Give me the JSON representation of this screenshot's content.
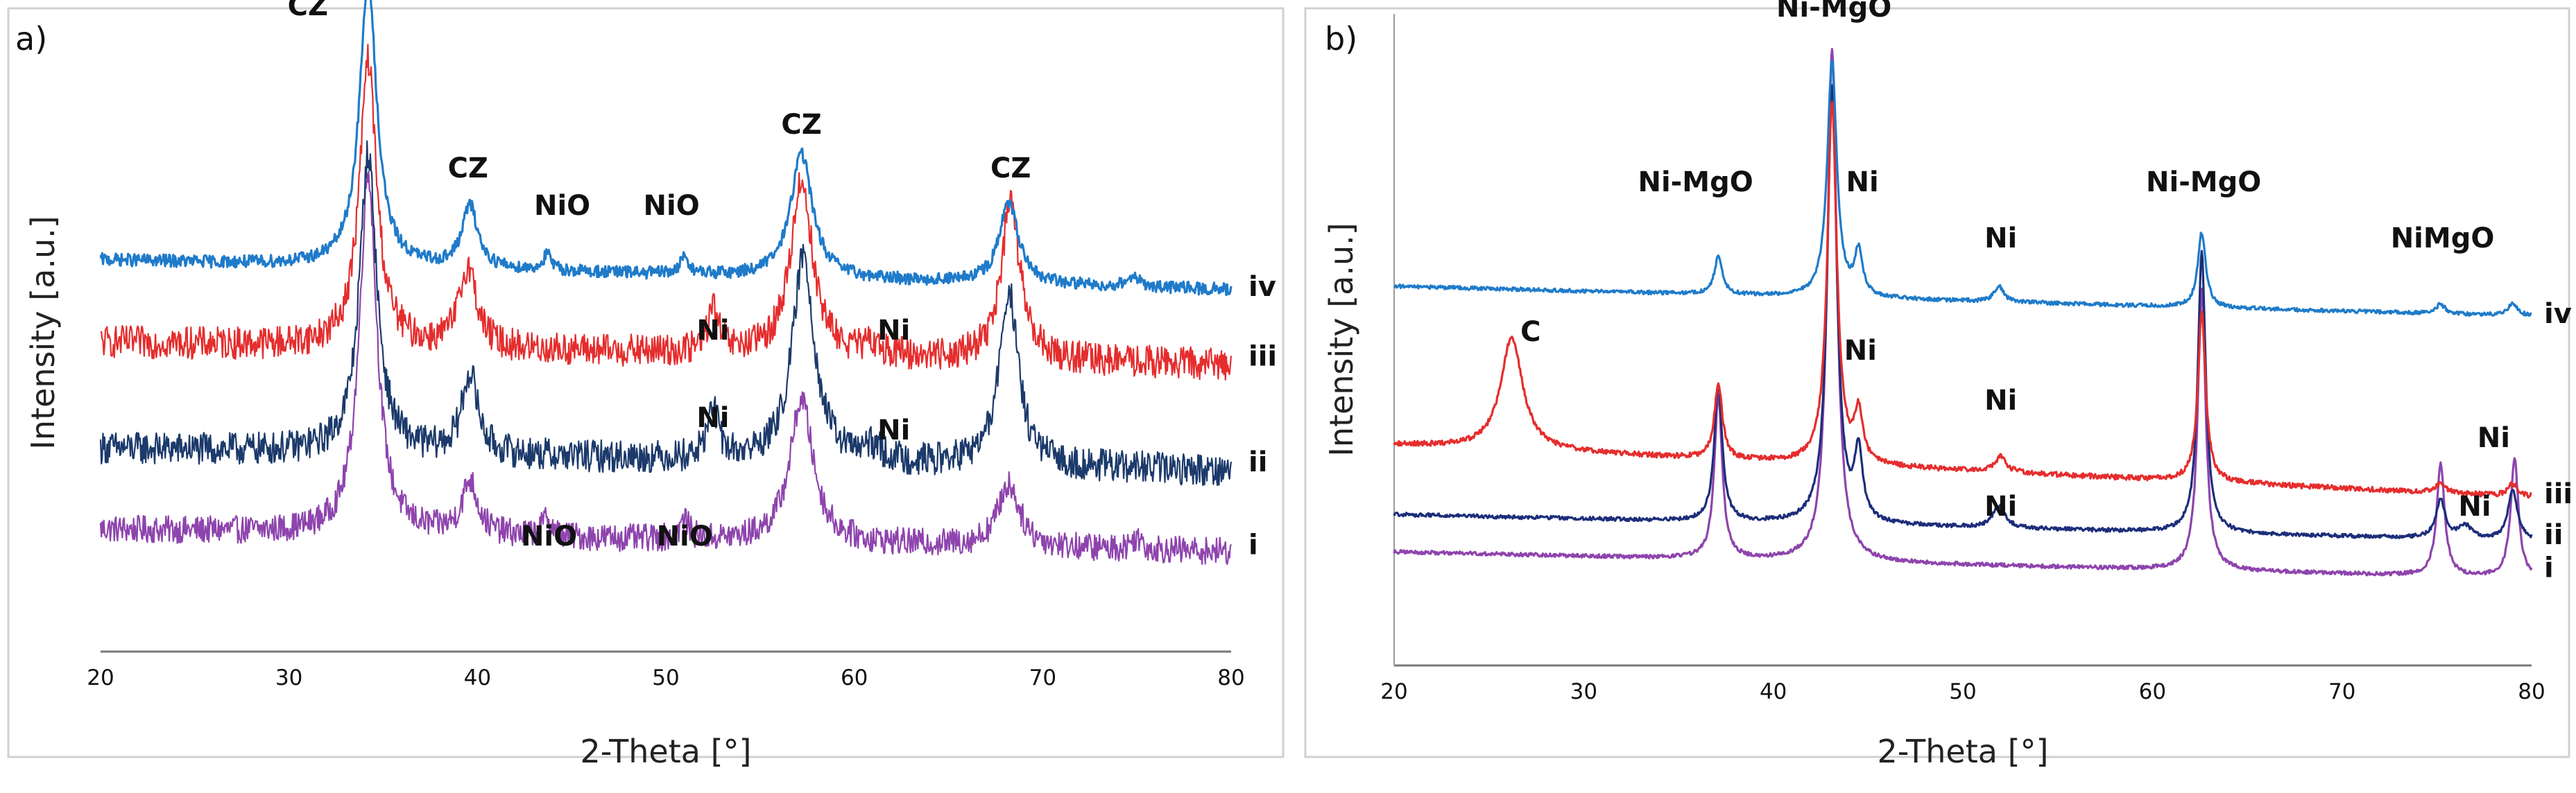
{
  "chart_data": [
    {
      "panel_label": "a)",
      "type": "line",
      "title": "",
      "xlabel": "2-Theta [°]",
      "ylabel": "Intensity [a.u.]",
      "xlim": [
        20,
        80
      ],
      "xticks": [
        "20",
        "30",
        "40",
        "50",
        "60",
        "70",
        "80"
      ],
      "grid": false,
      "series": [
        {
          "name": "i",
          "color": "#8e44ad",
          "baseline": 0.16,
          "noise": 0.022,
          "drift": 0.06,
          "peaks": [
            [
              34.2,
              0.58,
              0.55
            ],
            [
              39.6,
              0.085,
              0.5
            ],
            [
              43.7,
              0.03,
              0.3
            ],
            [
              51.0,
              0.03,
              0.3
            ],
            [
              57.2,
              0.23,
              0.75
            ],
            [
              68.2,
              0.1,
              0.7
            ],
            [
              75,
              0.02,
              0.3
            ]
          ]
        },
        {
          "name": "ii",
          "color": "#1c3a6b",
          "baseline": 0.29,
          "noise": 0.026,
          "drift": 0.06,
          "peaks": [
            [
              34.2,
              0.48,
              0.55
            ],
            [
              39.6,
              0.13,
              0.5
            ],
            [
              52.5,
              0.08,
              0.35
            ],
            [
              57.3,
              0.33,
              0.7
            ],
            [
              61,
              0.02,
              0.5
            ],
            [
              68.2,
              0.28,
              0.6
            ]
          ]
        },
        {
          "name": "iii",
          "color": "#e52d2d",
          "baseline": 0.46,
          "noise": 0.026,
          "drift": 0.06,
          "peaks": [
            [
              34.2,
              0.46,
              0.55
            ],
            [
              39.5,
              0.13,
              0.55
            ],
            [
              52.5,
              0.07,
              0.35
            ],
            [
              57.2,
              0.28,
              0.7
            ],
            [
              61,
              0.015,
              0.5
            ],
            [
              68.3,
              0.25,
              0.6
            ]
          ]
        },
        {
          "name": "iv",
          "color": "#1f7bc9",
          "baseline": 0.58,
          "noise": 0.01,
          "drift": 0.08,
          "peaks": [
            [
              34.2,
              0.46,
              0.55
            ],
            [
              39.6,
              0.1,
              0.5
            ],
            [
              43.7,
              0.025,
              0.25
            ],
            [
              51.0,
              0.03,
              0.25
            ],
            [
              57.2,
              0.2,
              0.7
            ],
            [
              68.2,
              0.13,
              0.6
            ],
            [
              74.8,
              0.02,
              0.3
            ]
          ]
        }
      ],
      "annotations": [
        {
          "text": "CZ",
          "x": 31.0,
          "y": 1.02
        },
        {
          "text": "CZ",
          "x": 39.5,
          "y": 0.76
        },
        {
          "text": "NiO",
          "x": 44.5,
          "y": 0.7
        },
        {
          "text": "NiO",
          "x": 50.3,
          "y": 0.7
        },
        {
          "text": "CZ",
          "x": 57.2,
          "y": 0.83
        },
        {
          "text": "CZ",
          "x": 68.3,
          "y": 0.76
        },
        {
          "text": "Ni",
          "x": 52.5,
          "y": 0.5
        },
        {
          "text": "Ni",
          "x": 62.1,
          "y": 0.5
        },
        {
          "text": "Ni",
          "x": 52.5,
          "y": 0.36
        },
        {
          "text": "Ni",
          "x": 62.1,
          "y": 0.34
        },
        {
          "text": "NiO",
          "x": 43.8,
          "y": 0.17
        },
        {
          "text": "NiO",
          "x": 51.0,
          "y": 0.17
        }
      ]
    },
    {
      "panel_label": "b)",
      "type": "line",
      "title": "",
      "xlabel": "2-Theta [°]",
      "ylabel": "Intensity [a.u.]",
      "xlim": [
        20,
        80
      ],
      "xticks": [
        "20",
        "30",
        "40",
        "50",
        "60",
        "70",
        "80"
      ],
      "grid": false,
      "series": [
        {
          "name": "i",
          "color": "#8e44ad",
          "baseline": 0.14,
          "noise": 0.003,
          "drift": 0.07,
          "peaks": [
            [
              37.1,
              0.26,
              0.25
            ],
            [
              43.1,
              0.82,
              0.3
            ],
            [
              62.6,
              0.45,
              0.25
            ],
            [
              75.2,
              0.18,
              0.25
            ],
            [
              79.1,
              0.19,
              0.25
            ]
          ]
        },
        {
          "name": "ii",
          "color": "#1c2e7a",
          "baseline": 0.2,
          "noise": 0.003,
          "drift": 0.07,
          "peaks": [
            [
              37.1,
              0.22,
              0.25
            ],
            [
              43.1,
              0.7,
              0.3
            ],
            [
              44.5,
              0.11,
              0.25
            ],
            [
              51.9,
              0.035,
              0.4
            ],
            [
              62.6,
              0.45,
              0.25
            ],
            [
              75.2,
              0.06,
              0.3
            ],
            [
              76.5,
              0.02,
              0.4
            ],
            [
              79.0,
              0.08,
              0.3
            ]
          ]
        },
        {
          "name": "iii",
          "color": "#e52d2d",
          "baseline": 0.27,
          "noise": 0.004,
          "drift": 0.14,
          "peaks": [
            [
              26.2,
              0.18,
              0.7
            ],
            [
              37.1,
              0.12,
              0.25
            ],
            [
              43.1,
              0.58,
              0.3
            ],
            [
              44.5,
              0.08,
              0.25
            ],
            [
              52.0,
              0.025,
              0.35
            ],
            [
              62.6,
              0.27,
              0.25
            ],
            [
              75.2,
              0.015,
              0.3
            ],
            [
              79.0,
              0.02,
              0.3
            ]
          ]
        },
        {
          "name": "iv",
          "color": "#1f7bc9",
          "baseline": 0.56,
          "noise": 0.003,
          "drift": 0.08,
          "peaks": [
            [
              37.1,
              0.06,
              0.25
            ],
            [
              43.1,
              0.38,
              0.3
            ],
            [
              44.5,
              0.07,
              0.25
            ],
            [
              51.9,
              0.025,
              0.3
            ],
            [
              62.6,
              0.12,
              0.25
            ],
            [
              75.2,
              0.015,
              0.3
            ],
            [
              79.0,
              0.02,
              0.3
            ]
          ]
        }
      ],
      "annotations": [
        {
          "text": "Ni-MgO",
          "x": 43.2,
          "y": 1.04
        },
        {
          "text": "Ni-MgO",
          "x": 35.9,
          "y": 0.76
        },
        {
          "text": "Ni",
          "x": 44.7,
          "y": 0.76
        },
        {
          "text": "Ni",
          "x": 52.0,
          "y": 0.67
        },
        {
          "text": "Ni-MgO",
          "x": 62.7,
          "y": 0.76
        },
        {
          "text": "NiMgO",
          "x": 75.3,
          "y": 0.67
        },
        {
          "text": "C",
          "x": 27.2,
          "y": 0.52
        },
        {
          "text": "Ni",
          "x": 44.6,
          "y": 0.49
        },
        {
          "text": "Ni",
          "x": 52.0,
          "y": 0.41
        },
        {
          "text": "Ni",
          "x": 78.0,
          "y": 0.35
        },
        {
          "text": "Ni",
          "x": 52.0,
          "y": 0.24
        },
        {
          "text": "Ni",
          "x": 77.0,
          "y": 0.24
        }
      ]
    }
  ]
}
